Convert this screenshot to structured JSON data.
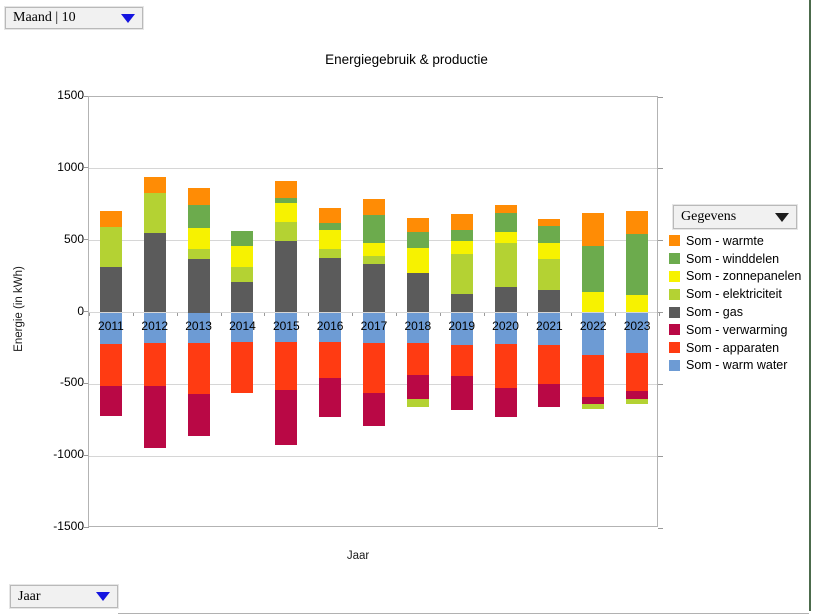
{
  "controls": {
    "row_field_button": {
      "label": "Maand | 10"
    },
    "data_field_button": {
      "label": "Gegevens"
    },
    "column_field_button": {
      "label": "Jaar"
    }
  },
  "chart_data": {
    "type": "bar",
    "stacked": true,
    "title": "Energiegebruik & productie",
    "xlabel": "Jaar",
    "ylabel": "Energie (in kWh)",
    "ylim": [
      -1500,
      1500
    ],
    "yticks": [
      1500,
      1000,
      500,
      0,
      -500,
      -1000,
      -1500
    ],
    "grid": true,
    "legend_position": "right",
    "categories": [
      "2011",
      "2012",
      "2013",
      "2014",
      "2015",
      "2016",
      "2017",
      "2018",
      "2019",
      "2020",
      "2021",
      "2022",
      "2023"
    ],
    "series": [
      {
        "name": "Som - warmte",
        "color": "#ff8c05",
        "values": [
          110,
          110,
          115,
          0,
          115,
          110,
          110,
          95,
          110,
          50,
          50,
          230,
          160
        ]
      },
      {
        "name": "Som - winddelen",
        "color": "#6cab4d",
        "values": [
          0,
          0,
          160,
          105,
          40,
          45,
          195,
          110,
          80,
          135,
          115,
          325,
          425
        ]
      },
      {
        "name": "Som - zonnepanelen",
        "color": "#f7f200",
        "values": [
          0,
          0,
          145,
          145,
          130,
          130,
          95,
          175,
          90,
          75,
          110,
          140,
          120
        ]
      },
      {
        "name": "Som - elektriciteit",
        "color": "#b4d233",
        "values": [
          280,
          280,
          70,
          100,
          130,
          65,
          55,
          -50,
          275,
          310,
          215,
          -35,
          -40
        ]
      },
      {
        "name": "Som - gas",
        "color": "#5b5b5b",
        "values": [
          315,
          555,
          375,
          215,
          500,
          380,
          335,
          275,
          130,
          175,
          160,
          0,
          0
        ]
      },
      {
        "name": "Som - verwarming",
        "color": "#b90845",
        "values": [
          -210,
          -430,
          -290,
          0,
          -380,
          -270,
          -230,
          -170,
          -235,
          -200,
          -155,
          -50,
          -55
        ]
      },
      {
        "name": "Som - apparaten",
        "color": "#ff3b12",
        "values": [
          -290,
          -300,
          -360,
          -355,
          -335,
          -250,
          -345,
          -225,
          -220,
          -305,
          -275,
          -295,
          -265
        ]
      },
      {
        "name": "Som - warm water",
        "color": "#6d9bd4",
        "values": [
          -220,
          -210,
          -210,
          -205,
          -205,
          -205,
          -215,
          -210,
          -225,
          -220,
          -225,
          -295,
          -280
        ]
      }
    ]
  }
}
